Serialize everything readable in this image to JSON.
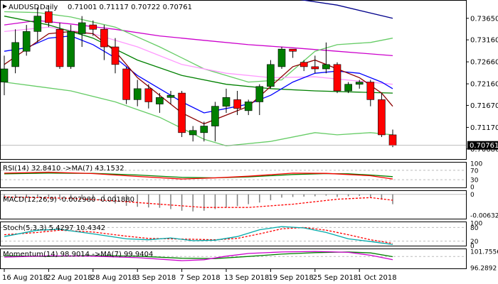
{
  "chart_data": {
    "type": "candlestick",
    "header": {
      "symbol": "AUDUSD",
      "timeframe": "Daily",
      "ohlc": "0.71001 0.71117 0.70722 0.70761"
    },
    "price_axis": {
      "ylim": [
        0.7045,
        0.7405
      ],
      "ticks": [
        0.7068,
        0.7117,
        0.7167,
        0.7216,
        0.7266,
        0.7316,
        0.7365
      ],
      "tick_labels": [
        "0.70680",
        "0.71170",
        "0.71670",
        "0.72160",
        "0.72660",
        "0.73160",
        "0.73650"
      ],
      "current_price_label": "0.70761",
      "current_price": 0.70761
    },
    "x_axis": {
      "date_labels": [
        "16 Aug 2018",
        "22 Aug 2018",
        "28 Aug 2018",
        "3 Sep 2018",
        "7 Sep 2018",
        "13 Sep 2018",
        "19 Sep 2018",
        "25 Sep 2018",
        "1 Oct 2018"
      ],
      "date_label_bar_index": [
        0,
        4,
        8,
        12,
        16,
        20,
        24,
        28,
        32
      ]
    },
    "candles": [
      {
        "o": 0.722,
        "h": 0.728,
        "l": 0.719,
        "c": 0.725
      },
      {
        "o": 0.7255,
        "h": 0.734,
        "l": 0.724,
        "c": 0.731
      },
      {
        "o": 0.729,
        "h": 0.735,
        "l": 0.728,
        "c": 0.7335
      },
      {
        "o": 0.7335,
        "h": 0.739,
        "l": 0.731,
        "c": 0.737
      },
      {
        "o": 0.738,
        "h": 0.7395,
        "l": 0.7345,
        "c": 0.7355
      },
      {
        "o": 0.734,
        "h": 0.7355,
        "l": 0.725,
        "c": 0.7255
      },
      {
        "o": 0.7255,
        "h": 0.735,
        "l": 0.725,
        "c": 0.7335
      },
      {
        "o": 0.733,
        "h": 0.737,
        "l": 0.73,
        "c": 0.7355
      },
      {
        "o": 0.735,
        "h": 0.736,
        "l": 0.7325,
        "c": 0.734
      },
      {
        "o": 0.734,
        "h": 0.735,
        "l": 0.727,
        "c": 0.73
      },
      {
        "o": 0.73,
        "h": 0.732,
        "l": 0.724,
        "c": 0.726
      },
      {
        "o": 0.725,
        "h": 0.7255,
        "l": 0.717,
        "c": 0.718
      },
      {
        "o": 0.718,
        "h": 0.7225,
        "l": 0.7165,
        "c": 0.7205
      },
      {
        "o": 0.7205,
        "h": 0.7215,
        "l": 0.716,
        "c": 0.7175
      },
      {
        "o": 0.717,
        "h": 0.7195,
        "l": 0.715,
        "c": 0.7185
      },
      {
        "o": 0.7185,
        "h": 0.72,
        "l": 0.717,
        "c": 0.719
      },
      {
        "o": 0.7195,
        "h": 0.72,
        "l": 0.7095,
        "c": 0.7105
      },
      {
        "o": 0.71,
        "h": 0.712,
        "l": 0.7085,
        "c": 0.711
      },
      {
        "o": 0.7105,
        "h": 0.713,
        "l": 0.7085,
        "c": 0.712
      },
      {
        "o": 0.712,
        "h": 0.7175,
        "l": 0.7085,
        "c": 0.7165
      },
      {
        "o": 0.7165,
        "h": 0.7205,
        "l": 0.715,
        "c": 0.7185
      },
      {
        "o": 0.718,
        "h": 0.72,
        "l": 0.7145,
        "c": 0.716
      },
      {
        "o": 0.7155,
        "h": 0.718,
        "l": 0.7145,
        "c": 0.7175
      },
      {
        "o": 0.7175,
        "h": 0.7215,
        "l": 0.7145,
        "c": 0.721
      },
      {
        "o": 0.721,
        "h": 0.727,
        "l": 0.7205,
        "c": 0.726
      },
      {
        "o": 0.7255,
        "h": 0.73,
        "l": 0.725,
        "c": 0.7295
      },
      {
        "o": 0.7295,
        "h": 0.7295,
        "l": 0.7275,
        "c": 0.729
      },
      {
        "o": 0.7265,
        "h": 0.727,
        "l": 0.7245,
        "c": 0.7255
      },
      {
        "o": 0.7255,
        "h": 0.728,
        "l": 0.724,
        "c": 0.725
      },
      {
        "o": 0.725,
        "h": 0.731,
        "l": 0.724,
        "c": 0.726
      },
      {
        "o": 0.726,
        "h": 0.7265,
        "l": 0.7195,
        "c": 0.72
      },
      {
        "o": 0.72,
        "h": 0.722,
        "l": 0.7195,
        "c": 0.7215
      },
      {
        "o": 0.7215,
        "h": 0.7225,
        "l": 0.7205,
        "c": 0.722
      },
      {
        "o": 0.722,
        "h": 0.7225,
        "l": 0.7165,
        "c": 0.718
      },
      {
        "o": 0.718,
        "h": 0.7195,
        "l": 0.7095,
        "c": 0.71
      },
      {
        "o": 0.71,
        "h": 0.7112,
        "l": 0.7072,
        "c": 0.7076
      }
    ],
    "overlays": [
      {
        "color": "#00008b",
        "points": [
          [
            20,
            0.743
          ],
          [
            26,
            0.741
          ],
          [
            30,
            0.7395
          ],
          [
            35,
            0.7365
          ]
        ]
      },
      {
        "color": "#cc00cc",
        "points": [
          [
            0,
            0.735
          ],
          [
            3,
            0.736
          ],
          [
            6,
            0.7352
          ],
          [
            10,
            0.734
          ],
          [
            14,
            0.7325
          ],
          [
            18,
            0.7315
          ],
          [
            22,
            0.7305
          ],
          [
            26,
            0.7298
          ],
          [
            30,
            0.729
          ],
          [
            35,
            0.728
          ]
        ]
      },
      {
        "color": "#66cc66",
        "points": [
          [
            0,
            0.738
          ],
          [
            3,
            0.7378
          ],
          [
            6,
            0.7368
          ],
          [
            10,
            0.7345
          ],
          [
            14,
            0.73
          ],
          [
            18,
            0.725
          ],
          [
            22,
            0.722
          ],
          [
            25,
            0.7225
          ],
          [
            28,
            0.729
          ],
          [
            30,
            0.7305
          ],
          [
            33,
            0.731
          ],
          [
            35,
            0.732
          ]
        ]
      },
      {
        "color": "#66cc66",
        "points": [
          [
            0,
            0.722
          ],
          [
            3,
            0.721
          ],
          [
            6,
            0.72
          ],
          [
            10,
            0.7175
          ],
          [
            14,
            0.714
          ],
          [
            18,
            0.709
          ],
          [
            20,
            0.7075
          ],
          [
            24,
            0.7085
          ],
          [
            28,
            0.7105
          ],
          [
            30,
            0.71
          ],
          [
            33,
            0.7105
          ],
          [
            35,
            0.71
          ]
        ]
      },
      {
        "color": "#ff99ff",
        "points": [
          [
            0,
            0.7335
          ],
          [
            4,
            0.7345
          ],
          [
            8,
            0.733
          ],
          [
            12,
            0.73
          ],
          [
            16,
            0.726
          ],
          [
            20,
            0.724
          ],
          [
            24,
            0.723
          ],
          [
            28,
            0.7232
          ],
          [
            32,
            0.7222
          ],
          [
            35,
            0.7215
          ]
        ]
      },
      {
        "color": "#008000",
        "points": [
          [
            0,
            0.737
          ],
          [
            4,
            0.735
          ],
          [
            8,
            0.732
          ],
          [
            12,
            0.727
          ],
          [
            16,
            0.7235
          ],
          [
            20,
            0.7215
          ],
          [
            24,
            0.7205
          ],
          [
            28,
            0.72
          ],
          [
            32,
            0.7197
          ],
          [
            35,
            0.7195
          ]
        ]
      },
      {
        "color": "#0000ff",
        "points": [
          [
            0,
            0.729
          ],
          [
            2,
            0.7298
          ],
          [
            4,
            0.732
          ],
          [
            6,
            0.7325
          ],
          [
            8,
            0.7305
          ],
          [
            10,
            0.7275
          ],
          [
            12,
            0.7235
          ],
          [
            14,
            0.7205
          ],
          [
            16,
            0.7175
          ],
          [
            18,
            0.715
          ],
          [
            20,
            0.716
          ],
          [
            22,
            0.717
          ],
          [
            24,
            0.719
          ],
          [
            26,
            0.722
          ],
          [
            28,
            0.724
          ],
          [
            30,
            0.7245
          ],
          [
            32,
            0.724
          ],
          [
            34,
            0.722
          ],
          [
            35,
            0.7205
          ]
        ]
      },
      {
        "color": "#8b0000",
        "points": [
          [
            0,
            0.726
          ],
          [
            2,
            0.7295
          ],
          [
            4,
            0.733
          ],
          [
            6,
            0.7335
          ],
          [
            8,
            0.733
          ],
          [
            10,
            0.729
          ],
          [
            12,
            0.723
          ],
          [
            14,
            0.719
          ],
          [
            16,
            0.715
          ],
          [
            18,
            0.7125
          ],
          [
            20,
            0.7145
          ],
          [
            22,
            0.7165
          ],
          [
            24,
            0.721
          ],
          [
            26,
            0.7255
          ],
          [
            28,
            0.727
          ],
          [
            30,
            0.725
          ],
          [
            32,
            0.723
          ],
          [
            34,
            0.7195
          ],
          [
            35,
            0.7165
          ]
        ]
      }
    ],
    "rsi": {
      "label": "RSI(14) 32.8410 ->MA(7) 43.1532",
      "ylim": [
        0,
        100
      ],
      "tick_labels": [
        "100",
        "70",
        "30",
        "0"
      ],
      "ticks": [
        100,
        70,
        30,
        0
      ],
      "rsi_points": [
        [
          0,
          58
        ],
        [
          4,
          62
        ],
        [
          8,
          56
        ],
        [
          12,
          44
        ],
        [
          16,
          33
        ],
        [
          19,
          38
        ],
        [
          22,
          45
        ],
        [
          26,
          58
        ],
        [
          29,
          57
        ],
        [
          31,
          52
        ],
        [
          33,
          47
        ],
        [
          35,
          33
        ]
      ],
      "ma_points": [
        [
          0,
          55
        ],
        [
          4,
          58
        ],
        [
          8,
          57
        ],
        [
          12,
          50
        ],
        [
          16,
          40
        ],
        [
          19,
          38
        ],
        [
          22,
          42
        ],
        [
          26,
          52
        ],
        [
          29,
          56
        ],
        [
          31,
          55
        ],
        [
          33,
          50
        ],
        [
          35,
          43
        ]
      ]
    },
    "macd": {
      "label": "MACD(12,26,9) -0.002980 -0.001880",
      "ylim": [
        -0.0072,
        0.0008
      ],
      "tick_labels": [
        "0",
        "-0.006325"
      ],
      "ticks": [
        0,
        -0.006325
      ],
      "histogram": [
        -0.0015,
        -0.0012,
        -0.001,
        -0.0011,
        -0.001,
        -0.0014,
        -0.0015,
        -0.0013,
        -0.0015,
        -0.002,
        -0.0028,
        -0.0035,
        -0.0038,
        -0.004,
        -0.0041,
        -0.0045,
        -0.005,
        -0.0052,
        -0.005,
        -0.0045,
        -0.004,
        -0.0036,
        -0.003,
        -0.0025,
        -0.0018,
        -0.001,
        -0.0008,
        -0.0007,
        -0.0006,
        -0.0004,
        -0.0008,
        -0.0006,
        -0.0005,
        -0.0008,
        -0.0016,
        -0.003
      ],
      "signal_points": [
        [
          0,
          -0.0008
        ],
        [
          6,
          -0.0012
        ],
        [
          10,
          -0.002
        ],
        [
          14,
          -0.003
        ],
        [
          18,
          -0.004
        ],
        [
          22,
          -0.004
        ],
        [
          26,
          -0.003
        ],
        [
          30,
          -0.0015
        ],
        [
          33,
          -0.001
        ],
        [
          35,
          -0.0018
        ]
      ]
    },
    "stoch": {
      "label": "Stoch(5,3,3) 5.4297 10.4342",
      "ylim": [
        0,
        100
      ],
      "tick_labels": [
        "100",
        "80",
        "20",
        "0"
      ],
      "ticks": [
        100,
        80,
        20,
        0
      ],
      "k_points": [
        [
          0,
          40
        ],
        [
          3,
          68
        ],
        [
          5,
          72
        ],
        [
          8,
          52
        ],
        [
          11,
          30
        ],
        [
          13,
          26
        ],
        [
          15,
          34
        ],
        [
          17,
          22
        ],
        [
          19,
          24
        ],
        [
          21,
          40
        ],
        [
          23,
          70
        ],
        [
          25,
          84
        ],
        [
          27,
          78
        ],
        [
          29,
          58
        ],
        [
          31,
          30
        ],
        [
          33,
          18
        ],
        [
          35,
          5
        ]
      ],
      "d_points": [
        [
          0,
          48
        ],
        [
          3,
          58
        ],
        [
          5,
          68
        ],
        [
          8,
          60
        ],
        [
          11,
          42
        ],
        [
          13,
          32
        ],
        [
          15,
          30
        ],
        [
          17,
          28
        ],
        [
          19,
          26
        ],
        [
          21,
          32
        ],
        [
          23,
          52
        ],
        [
          25,
          74
        ],
        [
          27,
          80
        ],
        [
          29,
          68
        ],
        [
          31,
          48
        ],
        [
          33,
          26
        ],
        [
          35,
          10
        ]
      ]
    },
    "momentum": {
      "label": "Momentum(14) 98.9014 ->MA(7) 99.9404",
      "ylim": [
        96.0,
        102.2
      ],
      "tick_labels": [
        "101.7556",
        "96.2892"
      ],
      "ticks": [
        101.7556,
        96.2892
      ],
      "mom_points": [
        [
          0,
          99.8
        ],
        [
          4,
          100.2
        ],
        [
          8,
          100.1
        ],
        [
          12,
          99.6
        ],
        [
          16,
          98.6
        ],
        [
          18,
          98.9
        ],
        [
          20,
          100.1
        ],
        [
          22,
          101.0
        ],
        [
          25,
          101.5
        ],
        [
          28,
          101.7
        ],
        [
          31,
          101.4
        ],
        [
          33,
          100.4
        ],
        [
          35,
          98.9
        ]
      ],
      "ma_points": [
        [
          0,
          100.2
        ],
        [
          4,
          100.0
        ],
        [
          8,
          100.3
        ],
        [
          12,
          100.1
        ],
        [
          16,
          99.4
        ],
        [
          19,
          99.3
        ],
        [
          22,
          100.0
        ],
        [
          25,
          100.8
        ],
        [
          28,
          101.3
        ],
        [
          31,
          101.5
        ],
        [
          33,
          101.2
        ],
        [
          35,
          99.94
        ]
      ]
    },
    "colors": {
      "bull": "#008000",
      "bear": "#ff0000",
      "rsi_line": "#ff0000",
      "rsi_ma": "#008000",
      "macd_hist": "#808080",
      "macd_signal": "#ff0000",
      "stoch_k": "#00aaaa",
      "stoch_d": "#ff0000",
      "mom_line": "#cc00cc",
      "mom_ma": "#008000"
    }
  }
}
